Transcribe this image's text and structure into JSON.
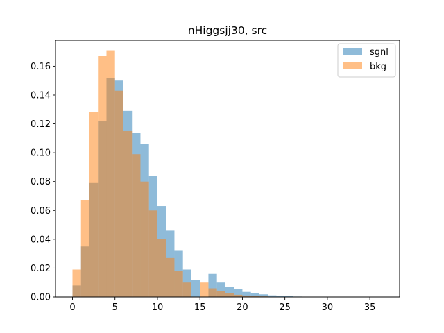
{
  "chart_data": {
    "type": "histogram",
    "title": "nHiggsjj30, src",
    "xlabel": "",
    "ylabel": "",
    "xlim": [
      -2,
      38.5
    ],
    "ylim": [
      0,
      0.178
    ],
    "xticks": [
      0,
      5,
      10,
      15,
      20,
      25,
      30,
      35
    ],
    "xtick_labels": [
      "0",
      "5",
      "10",
      "15",
      "20",
      "25",
      "30",
      "35"
    ],
    "yticks": [
      0,
      0.02,
      0.04,
      0.06,
      0.08,
      0.1,
      0.12,
      0.14,
      0.16
    ],
    "ytick_labels": [
      "0.00",
      "0.02",
      "0.04",
      "0.06",
      "0.08",
      "0.10",
      "0.12",
      "0.14",
      "0.16"
    ],
    "grid": false,
    "legend_position": "upper right",
    "bin_start": 0,
    "bin_width": 1,
    "series": [
      {
        "name": "sgnl",
        "color": "#1f77b4",
        "alpha": 0.5,
        "values": [
          0.008,
          0.035,
          0.079,
          0.122,
          0.152,
          0.15,
          0.129,
          0.114,
          0.106,
          0.084,
          0.063,
          0.046,
          0.032,
          0.019,
          0.012,
          0.0,
          0.016,
          0.01,
          0.007,
          0.0055,
          0.0035,
          0.0025,
          0.0018,
          0.0011,
          0.0008,
          0.0005,
          0.0003,
          0.0002,
          0.0001,
          0.0001,
          0.0001,
          0.0,
          0.0,
          0.0,
          0.0,
          0.0,
          0.0,
          0.0
        ]
      },
      {
        "name": "bkg",
        "color": "#ff7f0e",
        "alpha": 0.5,
        "values": [
          0.019,
          0.067,
          0.128,
          0.167,
          0.171,
          0.143,
          0.115,
          0.099,
          0.08,
          0.06,
          0.04,
          0.027,
          0.018,
          0.01,
          0.0,
          0.01,
          0.006,
          0.004,
          0.0025,
          0.0015,
          0.001,
          0.0007,
          0.0004,
          0.0002,
          0.0001,
          0.0001,
          0.0,
          0.0,
          0.0,
          0.0,
          0.0,
          0.0,
          0.0,
          0.0,
          0.0,
          0.0,
          0.0,
          0.0
        ]
      }
    ]
  }
}
